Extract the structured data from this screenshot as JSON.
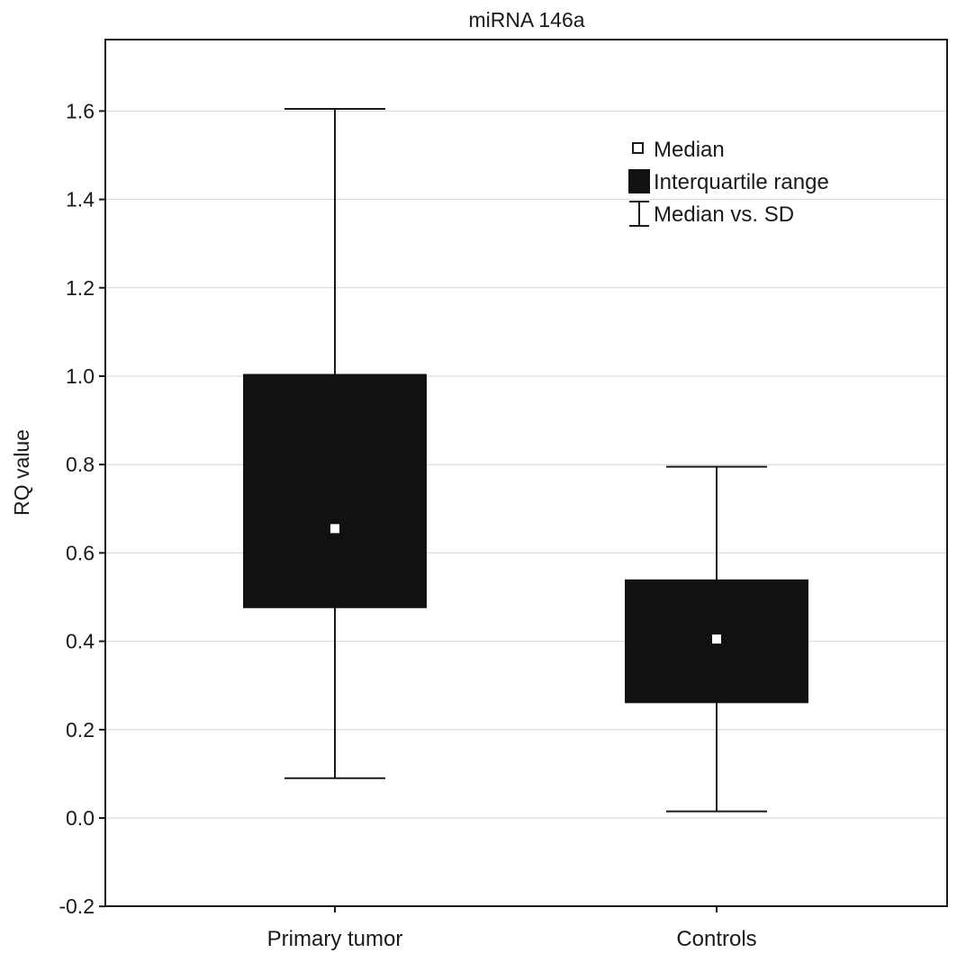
{
  "chart_data": {
    "type": "box",
    "title": "miRNA 146a",
    "xlabel": "",
    "ylabel": "RQ value",
    "ylim": [
      -0.2,
      1.76
    ],
    "yticks": [
      -0.2,
      0.0,
      0.2,
      0.4,
      0.6,
      0.8,
      1.0,
      1.2,
      1.4,
      1.6
    ],
    "ytick_labels": [
      "-0.2",
      "0.0",
      "0.2",
      "0.4",
      "0.6",
      "0.8",
      "1.0",
      "1.2",
      "1.4",
      "1.6"
    ],
    "grid": true,
    "legend_position": "top-right",
    "legend": [
      {
        "symbol": "median-marker",
        "label": "Median"
      },
      {
        "symbol": "box",
        "label": "Interquartile  range"
      },
      {
        "symbol": "whisker",
        "label": "Median vs. SD"
      }
    ],
    "categories": [
      "Primary tumor",
      "Controls"
    ],
    "boxes": [
      {
        "category": "Primary tumor",
        "median": 0.655,
        "q1": 0.475,
        "q3": 1.005,
        "whisker_low": 0.09,
        "whisker_high": 1.605
      },
      {
        "category": "Controls",
        "median": 0.405,
        "q1": 0.26,
        "q3": 0.54,
        "whisker_low": 0.015,
        "whisker_high": 0.795
      }
    ],
    "colors": {
      "box": "#111111",
      "median_marker": "#ffffff",
      "grid": "#d6d6d6",
      "axis": "#1a1a1a"
    }
  }
}
